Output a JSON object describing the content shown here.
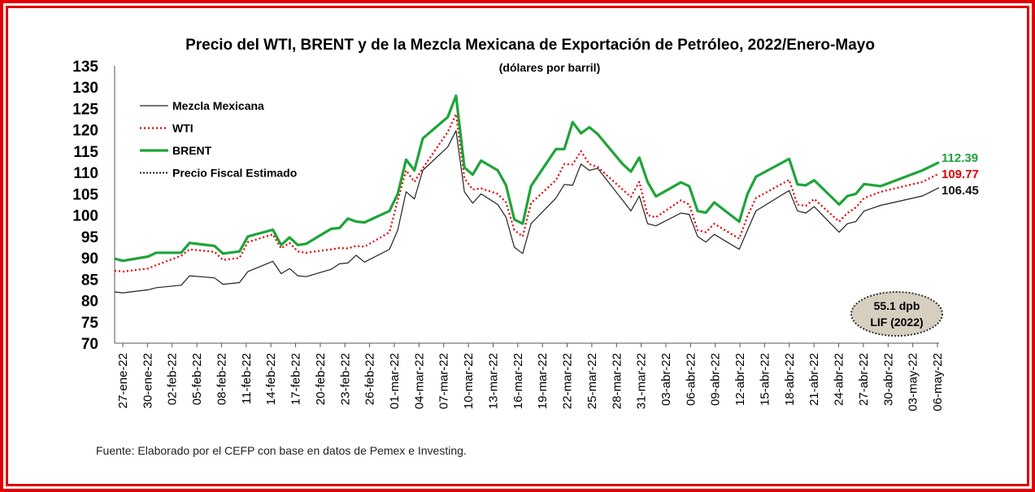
{
  "colors": {
    "frame": "#e00000",
    "mezcla": "#222222",
    "wti": "#e00000",
    "brent": "#1fa33a",
    "fiscal": "#222222",
    "badge_fill": "#d6cfbf"
  },
  "chart_data": {
    "type": "line",
    "title": "Precio del WTI, BRENT y de la Mezcla Mexicana de Exportación de Petróleo, 2022/Enero-Mayo",
    "subtitle": "(dólares por barril)",
    "ylim": [
      70,
      135
    ],
    "yticks": [
      70,
      75,
      80,
      85,
      90,
      95,
      100,
      105,
      110,
      115,
      120,
      125,
      130,
      135
    ],
    "xticks": [
      "27-ene-22",
      "30-ene-22",
      "02-feb-22",
      "05-feb-22",
      "08-feb-22",
      "11-feb-22",
      "14-feb-22",
      "17-feb-22",
      "20-feb-22",
      "23-feb-22",
      "26-feb-22",
      "01-mar-22",
      "04-mar-22",
      "07-mar-22",
      "10-mar-22",
      "13-mar-22",
      "16-mar-22",
      "19-mar-22",
      "22-mar-22",
      "25-mar-22",
      "28-mar-22",
      "31-mar-22",
      "03-abr-22",
      "06-abr-22",
      "09-abr-22",
      "12-abr-22",
      "15-abr-22",
      "18-abr-22",
      "21-abr-22",
      "24-abr-22",
      "27-abr-22",
      "30-abr-22",
      "03-may-22",
      "06-may-22"
    ],
    "x_start": "2022-01-27",
    "x_end": "2022-05-06",
    "legend_position": "top-left",
    "grid": false,
    "series": [
      {
        "name": "Mezcla Mexicana",
        "color_key": "mezcla",
        "style": "solid-thin",
        "end_label": "106.45",
        "points": [
          [
            "2022-01-27",
            82.0
          ],
          [
            "2022-01-28",
            81.8
          ],
          [
            "2022-01-31",
            82.5
          ],
          [
            "2022-02-01",
            83.0
          ],
          [
            "2022-02-04",
            83.6
          ],
          [
            "2022-02-05",
            85.8
          ],
          [
            "2022-02-08",
            85.3
          ],
          [
            "2022-02-09",
            83.8
          ],
          [
            "2022-02-11",
            84.2
          ],
          [
            "2022-02-12",
            86.8
          ],
          [
            "2022-02-15",
            89.2
          ],
          [
            "2022-02-16",
            86.3
          ],
          [
            "2022-02-17",
            87.5
          ],
          [
            "2022-02-18",
            85.8
          ],
          [
            "2022-02-19",
            85.6
          ],
          [
            "2022-02-22",
            87.3
          ],
          [
            "2022-02-23",
            88.6
          ],
          [
            "2022-02-24",
            88.8
          ],
          [
            "2022-02-25",
            90.6
          ],
          [
            "2022-02-26",
            89.0
          ],
          [
            "2022-03-01",
            92.0
          ],
          [
            "2022-03-02",
            96.5
          ],
          [
            "2022-03-03",
            105.5
          ],
          [
            "2022-03-04",
            103.8
          ],
          [
            "2022-03-05",
            110.5
          ],
          [
            "2022-03-08",
            116.0
          ],
          [
            "2022-03-09",
            119.8
          ],
          [
            "2022-03-10",
            105.5
          ],
          [
            "2022-03-11",
            102.8
          ],
          [
            "2022-03-12",
            105.0
          ],
          [
            "2022-03-14",
            102.5
          ],
          [
            "2022-03-15",
            99.5
          ],
          [
            "2022-03-16",
            92.5
          ],
          [
            "2022-03-17",
            91.0
          ],
          [
            "2022-03-18",
            98.0
          ],
          [
            "2022-03-21",
            104.0
          ],
          [
            "2022-03-22",
            107.2
          ],
          [
            "2022-03-23",
            107.0
          ],
          [
            "2022-03-24",
            112.0
          ],
          [
            "2022-03-25",
            110.5
          ],
          [
            "2022-03-26",
            111.0
          ],
          [
            "2022-03-29",
            103.5
          ],
          [
            "2022-03-30",
            101.0
          ],
          [
            "2022-03-31",
            104.5
          ],
          [
            "2022-04-01",
            98.0
          ],
          [
            "2022-04-02",
            97.5
          ],
          [
            "2022-04-05",
            100.5
          ],
          [
            "2022-04-06",
            100.2
          ],
          [
            "2022-04-07",
            95.0
          ],
          [
            "2022-04-08",
            93.7
          ],
          [
            "2022-04-09",
            95.5
          ],
          [
            "2022-04-12",
            92.0
          ],
          [
            "2022-04-13",
            96.5
          ],
          [
            "2022-04-14",
            101.0
          ],
          [
            "2022-04-18",
            105.8
          ],
          [
            "2022-04-19",
            101.0
          ],
          [
            "2022-04-20",
            100.5
          ],
          [
            "2022-04-21",
            102.0
          ],
          [
            "2022-04-24",
            96.0
          ],
          [
            "2022-04-25",
            98.0
          ],
          [
            "2022-04-26",
            98.5
          ],
          [
            "2022-04-27",
            101.0
          ],
          [
            "2022-04-29",
            102.3
          ],
          [
            "2022-05-04",
            104.5
          ],
          [
            "2022-05-06",
            106.45
          ]
        ]
      },
      {
        "name": "WTI",
        "color_key": "wti",
        "style": "dotted",
        "end_label": "109.77",
        "points": [
          [
            "2022-01-27",
            87.0
          ],
          [
            "2022-01-28",
            86.8
          ],
          [
            "2022-01-31",
            87.5
          ],
          [
            "2022-02-01",
            88.3
          ],
          [
            "2022-02-04",
            90.5
          ],
          [
            "2022-02-05",
            92.0
          ],
          [
            "2022-02-08",
            91.4
          ],
          [
            "2022-02-09",
            89.5
          ],
          [
            "2022-02-11",
            90.0
          ],
          [
            "2022-02-12",
            93.7
          ],
          [
            "2022-02-15",
            95.5
          ],
          [
            "2022-02-16",
            92.2
          ],
          [
            "2022-02-17",
            93.5
          ],
          [
            "2022-02-18",
            91.5
          ],
          [
            "2022-02-19",
            91.2
          ],
          [
            "2022-02-22",
            92.0
          ],
          [
            "2022-02-23",
            92.3
          ],
          [
            "2022-02-24",
            92.2
          ],
          [
            "2022-02-25",
            92.8
          ],
          [
            "2022-02-26",
            92.6
          ],
          [
            "2022-03-01",
            96.0
          ],
          [
            "2022-03-02",
            103.5
          ],
          [
            "2022-03-03",
            110.5
          ],
          [
            "2022-03-04",
            107.8
          ],
          [
            "2022-03-05",
            111.0
          ],
          [
            "2022-03-08",
            119.5
          ],
          [
            "2022-03-09",
            123.7
          ],
          [
            "2022-03-10",
            108.7
          ],
          [
            "2022-03-11",
            106.0
          ],
          [
            "2022-03-12",
            106.3
          ],
          [
            "2022-03-14",
            105.0
          ],
          [
            "2022-03-15",
            103.0
          ],
          [
            "2022-03-16",
            96.5
          ],
          [
            "2022-03-17",
            95.0
          ],
          [
            "2022-03-18",
            102.8
          ],
          [
            "2022-03-21",
            108.2
          ],
          [
            "2022-03-22",
            112.0
          ],
          [
            "2022-03-23",
            111.9
          ],
          [
            "2022-03-24",
            115.0
          ],
          [
            "2022-03-25",
            112.0
          ],
          [
            "2022-03-26",
            111.3
          ],
          [
            "2022-03-29",
            106.0
          ],
          [
            "2022-03-30",
            104.3
          ],
          [
            "2022-03-31",
            107.8
          ],
          [
            "2022-04-01",
            100.0
          ],
          [
            "2022-04-02",
            99.5
          ],
          [
            "2022-04-05",
            103.5
          ],
          [
            "2022-04-06",
            102.5
          ],
          [
            "2022-04-07",
            96.5
          ],
          [
            "2022-04-08",
            96.0
          ],
          [
            "2022-04-09",
            98.0
          ],
          [
            "2022-04-12",
            94.5
          ],
          [
            "2022-04-13",
            99.8
          ],
          [
            "2022-04-14",
            104.0
          ],
          [
            "2022-04-18",
            108.3
          ],
          [
            "2022-04-19",
            102.5
          ],
          [
            "2022-04-20",
            102.2
          ],
          [
            "2022-04-21",
            103.8
          ],
          [
            "2022-04-24",
            98.5
          ],
          [
            "2022-04-25",
            100.5
          ],
          [
            "2022-04-26",
            101.8
          ],
          [
            "2022-04-27",
            104.0
          ],
          [
            "2022-04-29",
            105.5
          ],
          [
            "2022-05-04",
            107.8
          ],
          [
            "2022-05-06",
            109.77
          ]
        ]
      },
      {
        "name": "BRENT",
        "color_key": "brent",
        "style": "solid-thick",
        "end_label": "112.39",
        "points": [
          [
            "2022-01-27",
            89.8
          ],
          [
            "2022-01-28",
            89.3
          ],
          [
            "2022-01-31",
            90.3
          ],
          [
            "2022-02-01",
            91.2
          ],
          [
            "2022-02-04",
            91.2
          ],
          [
            "2022-02-05",
            93.5
          ],
          [
            "2022-02-08",
            92.8
          ],
          [
            "2022-02-09",
            91.0
          ],
          [
            "2022-02-11",
            91.5
          ],
          [
            "2022-02-12",
            95.0
          ],
          [
            "2022-02-15",
            96.6
          ],
          [
            "2022-02-16",
            93.0
          ],
          [
            "2022-02-17",
            94.8
          ],
          [
            "2022-02-18",
            93.0
          ],
          [
            "2022-02-19",
            93.3
          ],
          [
            "2022-02-22",
            96.8
          ],
          [
            "2022-02-23",
            97.0
          ],
          [
            "2022-02-24",
            99.2
          ],
          [
            "2022-02-25",
            98.5
          ],
          [
            "2022-02-26",
            98.3
          ],
          [
            "2022-03-01",
            101.0
          ],
          [
            "2022-03-02",
            105.0
          ],
          [
            "2022-03-03",
            113.0
          ],
          [
            "2022-03-04",
            110.5
          ],
          [
            "2022-03-05",
            118.0
          ],
          [
            "2022-03-08",
            123.0
          ],
          [
            "2022-03-09",
            128.0
          ],
          [
            "2022-03-10",
            111.2
          ],
          [
            "2022-03-11",
            109.5
          ],
          [
            "2022-03-12",
            112.8
          ],
          [
            "2022-03-14",
            110.5
          ],
          [
            "2022-03-15",
            107.0
          ],
          [
            "2022-03-16",
            99.0
          ],
          [
            "2022-03-17",
            98.0
          ],
          [
            "2022-03-18",
            106.8
          ],
          [
            "2022-03-21",
            115.5
          ],
          [
            "2022-03-22",
            115.5
          ],
          [
            "2022-03-23",
            121.8
          ],
          [
            "2022-03-24",
            119.2
          ],
          [
            "2022-03-25",
            120.6
          ],
          [
            "2022-03-26",
            119.0
          ],
          [
            "2022-03-29",
            112.0
          ],
          [
            "2022-03-30",
            110.2
          ],
          [
            "2022-03-31",
            113.5
          ],
          [
            "2022-04-01",
            107.8
          ],
          [
            "2022-04-02",
            104.4
          ],
          [
            "2022-04-05",
            107.7
          ],
          [
            "2022-04-06",
            106.8
          ],
          [
            "2022-04-07",
            101.0
          ],
          [
            "2022-04-08",
            100.6
          ],
          [
            "2022-04-09",
            103.0
          ],
          [
            "2022-04-12",
            98.5
          ],
          [
            "2022-04-13",
            105.0
          ],
          [
            "2022-04-14",
            109.0
          ],
          [
            "2022-04-18",
            113.2
          ],
          [
            "2022-04-19",
            107.2
          ],
          [
            "2022-04-20",
            107.0
          ],
          [
            "2022-04-21",
            108.2
          ],
          [
            "2022-04-24",
            102.5
          ],
          [
            "2022-04-25",
            104.5
          ],
          [
            "2022-04-26",
            105.0
          ],
          [
            "2022-04-27",
            107.3
          ],
          [
            "2022-04-29",
            106.8
          ],
          [
            "2022-05-04",
            110.5
          ],
          [
            "2022-05-06",
            112.39
          ]
        ]
      },
      {
        "name": "Precio Fiscal Estimado",
        "color_key": "fiscal",
        "style": "dotted-dark",
        "legend_only": true,
        "points": []
      }
    ],
    "annotation": {
      "line1": "55.1 dpb",
      "line2": "LIF (2022)"
    }
  },
  "source_note": "Fuente: Elaborado por el CEFP con base en datos de Pemex e Investing."
}
